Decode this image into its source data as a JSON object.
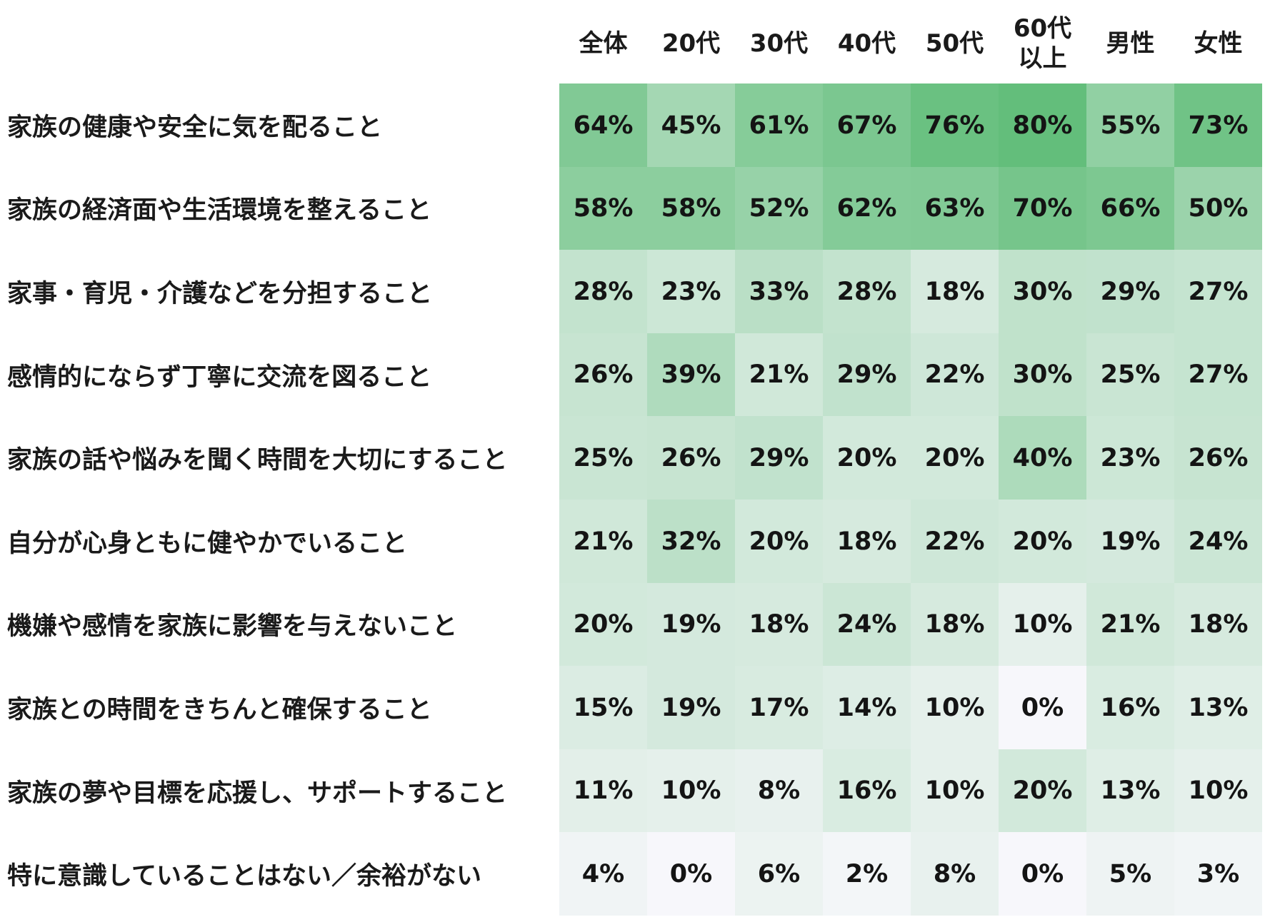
{
  "chart_data": {
    "type": "heatmap",
    "columns": [
      [
        "全体"
      ],
      [
        "20代"
      ],
      [
        "30代"
      ],
      [
        "40代"
      ],
      [
        "50代"
      ],
      [
        "60代",
        "以上"
      ],
      [
        "男性"
      ],
      [
        "女性"
      ]
    ],
    "rows": [
      "家族の健康や安全に気を配ること",
      "家族の経済面や生活環境を整えること",
      "家事・育児・介護などを分担すること",
      "感情的にならず丁寧に交流を図ること",
      "家族の話や悩みを聞く時間を大切にすること",
      "自分が心身ともに健やかでいること",
      "機嫌や感情を家族に影響を与えないこと",
      "家族との時間をきちんと確保すること",
      "家族の夢や目標を応援し、サポートすること",
      "特に意識していることはない／余裕がない"
    ],
    "values": [
      [
        64,
        45,
        61,
        67,
        76,
        80,
        55,
        73
      ],
      [
        58,
        58,
        52,
        62,
        63,
        70,
        66,
        50
      ],
      [
        28,
        23,
        33,
        28,
        18,
        30,
        29,
        27
      ],
      [
        26,
        39,
        21,
        29,
        22,
        30,
        25,
        27
      ],
      [
        25,
        26,
        29,
        20,
        20,
        40,
        23,
        26
      ],
      [
        21,
        32,
        20,
        18,
        22,
        20,
        19,
        24
      ],
      [
        20,
        19,
        18,
        24,
        18,
        10,
        21,
        18
      ],
      [
        15,
        19,
        17,
        14,
        10,
        0,
        16,
        13
      ],
      [
        11,
        10,
        8,
        16,
        10,
        20,
        13,
        10
      ],
      [
        4,
        0,
        6,
        2,
        8,
        0,
        5,
        3
      ]
    ],
    "value_suffix": "%",
    "color_low": "#f7f7fb",
    "color_high": "#63be7b",
    "value_range": [
      0,
      80
    ]
  }
}
